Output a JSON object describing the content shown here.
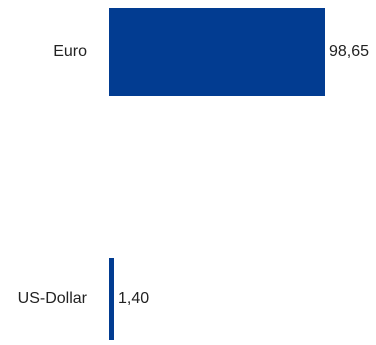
{
  "chart_data": {
    "type": "bar",
    "orientation": "horizontal",
    "categories": [
      "Euro",
      "US-Dollar"
    ],
    "values": [
      98.65,
      1.4
    ],
    "value_labels": [
      "98,65",
      "1,40"
    ],
    "xlim": [
      0,
      98.65
    ],
    "grid": false,
    "legend": "none",
    "bar_color": "#023c91"
  }
}
